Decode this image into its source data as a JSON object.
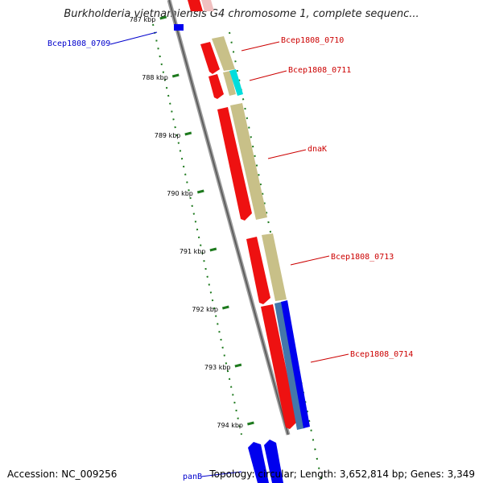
{
  "title": "Burkholderia vietnamiensis G4 chromosome 1, complete sequenc...",
  "accession": "Accession: NC_009256",
  "summary": "Topology: circular; Length: 3,652,814 bp; Genes: 3,349",
  "ticks": [
    {
      "label": "787 kbp",
      "kbp": 787
    },
    {
      "label": "788 kbp",
      "kbp": 788
    },
    {
      "label": "789 kbp",
      "kbp": 789
    },
    {
      "label": "790 kbp",
      "kbp": 790
    },
    {
      "label": "791 kbp",
      "kbp": 791
    },
    {
      "label": "792 kbp",
      "kbp": 792
    },
    {
      "label": "793 kbp",
      "kbp": 793
    },
    {
      "label": "794 kbp",
      "kbp": 794
    }
  ],
  "genes": [
    {
      "name": "Bcep1808_0709",
      "label_color": "#0000cc"
    },
    {
      "name": "Bcep1808_0710",
      "label_color": "#cc0000"
    },
    {
      "name": "Bcep1808_0711",
      "label_color": "#cc0000"
    },
    {
      "name": "dnaK",
      "label_color": "#cc0000"
    },
    {
      "name": "Bcep1808_0713",
      "label_color": "#cc0000"
    },
    {
      "name": "Bcep1808_0714",
      "label_color": "#cc0000"
    },
    {
      "name": "panB",
      "label_color": "#0000cc"
    }
  ],
  "colors": {
    "cds_red": "#ee1111",
    "cds_blue": "#0000ee",
    "feature_tan": "#c8c088",
    "feature_cyan": "#00dddd",
    "feature_steel": "#4477aa",
    "backbone": "#888888",
    "tick_green": "#1e7a1e"
  }
}
